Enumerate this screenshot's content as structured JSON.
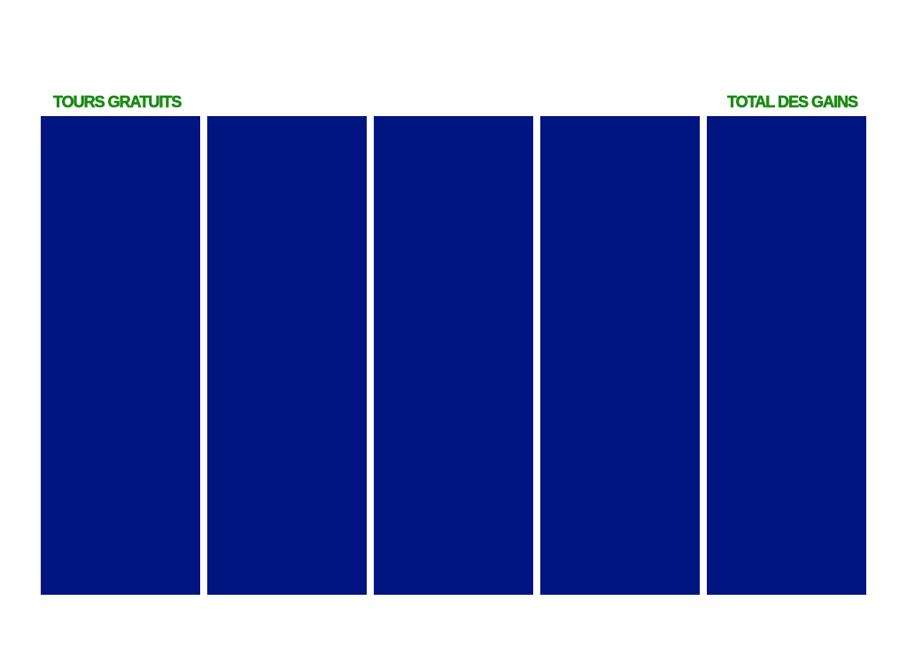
{
  "hud": {
    "free_spins_label": "TOURS GRATUITS",
    "total_win_label": "TOTAL DES GAINS"
  }
}
